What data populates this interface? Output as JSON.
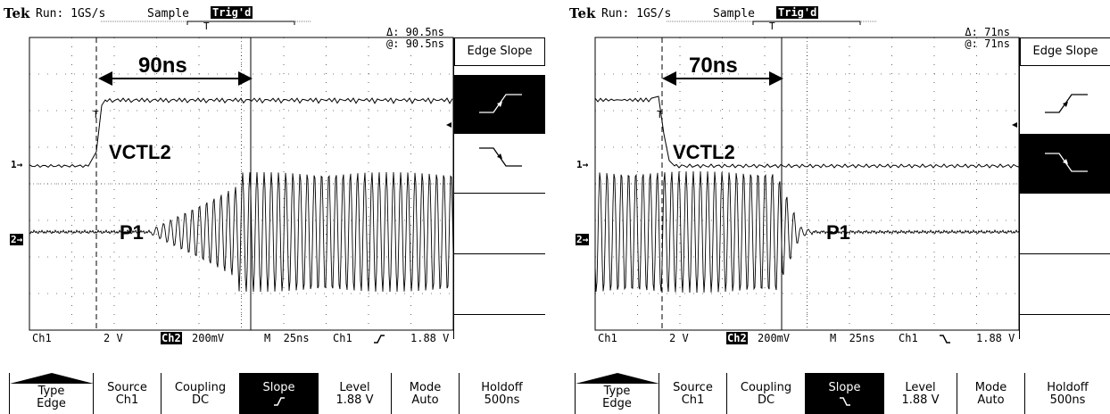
{
  "left": {
    "tek": "Tek",
    "run": "Run: 1GS/s",
    "sample": "Sample",
    "trigd": "Trig'd",
    "delta": "Δ: 90.5ns",
    "at": "@: 90.5ns",
    "duration": "90ns",
    "label_vctl": "VCTL2",
    "label_p1": "P1",
    "ch1_marker": "1→",
    "ch2_marker": "2→",
    "menu_title": "Edge Slope",
    "selected_slope": "rising",
    "status": {
      "ch1": "Ch1",
      "ch1_scale": "2 V",
      "ch2": "Ch2",
      "ch2_scale": "200mV",
      "timebase": "M  25ns",
      "trig_src": "Ch1",
      "trig_slope": "rising",
      "trig_level": "1.88 V"
    },
    "buttons": [
      {
        "l1": "Type",
        "l2": "Edge"
      },
      {
        "l1": "Source",
        "l2": "Ch1"
      },
      {
        "l1": "Coupling",
        "l2": "DC"
      },
      {
        "l1": "Slope",
        "l2": "rising"
      },
      {
        "l1": "Level",
        "l2": "1.88 V"
      },
      {
        "l1": "Mode",
        "l2": "Auto"
      },
      {
        "l1": "Holdoff",
        "l2": "500ns"
      }
    ]
  },
  "right": {
    "tek": "Tek",
    "run": "Run: 1GS/s",
    "sample": "Sample",
    "trigd": "Trig'd",
    "delta": "Δ: 71ns",
    "at": "@: 71ns",
    "duration": "70ns",
    "label_vctl": "VCTL2",
    "label_p1": "P1",
    "ch1_marker": "1→",
    "ch2_marker": "2→",
    "menu_title": "Edge Slope",
    "selected_slope": "falling",
    "status": {
      "ch1": "Ch1",
      "ch1_scale": "2 V",
      "ch2": "Ch2",
      "ch2_scale": "200mV",
      "timebase": "M  25ns",
      "trig_src": "Ch1",
      "trig_slope": "falling",
      "trig_level": "1.88 V"
    },
    "buttons": [
      {
        "l1": "Type",
        "l2": "Edge"
      },
      {
        "l1": "Source",
        "l2": "Ch1"
      },
      {
        "l1": "Coupling",
        "l2": "DC"
      },
      {
        "l1": "Slope",
        "l2": "falling"
      },
      {
        "l1": "Level",
        "l2": "1.88 V"
      },
      {
        "l1": "Mode",
        "l2": "Auto"
      },
      {
        "l1": "Holdoff",
        "l2": "500ns"
      }
    ]
  }
}
